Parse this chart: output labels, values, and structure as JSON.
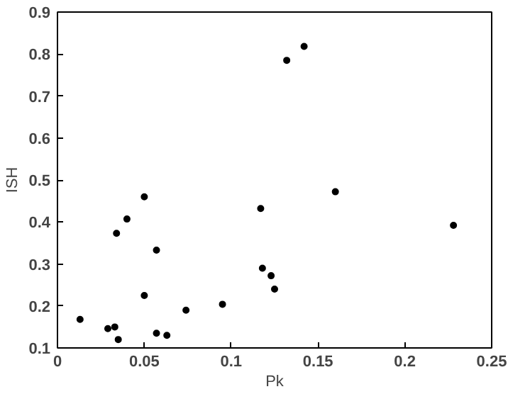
{
  "chart_data": {
    "type": "scatter",
    "xlabel": "Pk",
    "ylabel": "ISH",
    "x": [
      0.013,
      0.029,
      0.033,
      0.035,
      0.034,
      0.04,
      0.05,
      0.05,
      0.057,
      0.057,
      0.063,
      0.074,
      0.095,
      0.117,
      0.118,
      0.123,
      0.125,
      0.132,
      0.142,
      0.16,
      0.228
    ],
    "values": [
      0.168,
      0.146,
      0.15,
      0.12,
      0.373,
      0.407,
      0.46,
      0.225,
      0.333,
      0.135,
      0.13,
      0.19,
      0.204,
      0.432,
      0.29,
      0.272,
      0.24,
      0.785,
      0.818,
      0.472,
      0.392
    ],
    "color": "#000000",
    "marker": "circle",
    "xlim": [
      0,
      0.25
    ],
    "xticks": [
      0,
      0.05,
      0.1,
      0.15,
      0.2,
      0.25
    ],
    "ylim": [
      0.1,
      0.9
    ],
    "yticks": [
      0.1,
      0.2,
      0.3,
      0.4,
      0.5,
      0.6,
      0.7,
      0.8,
      0.9
    ],
    "grid": false
  }
}
